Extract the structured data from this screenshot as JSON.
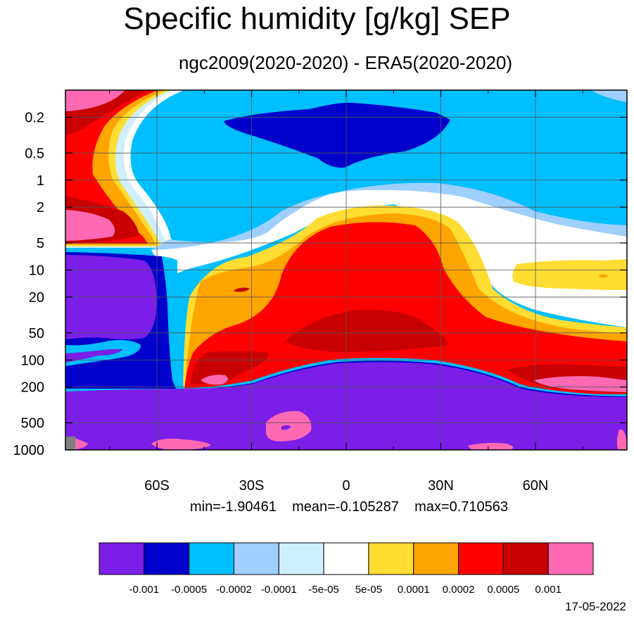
{
  "chart_data": {
    "type": "contour",
    "title": "Specific humidity [g/kg] SEP",
    "subtitle": "ngc2009(2020-2020) - ERA5(2020-2020)",
    "x_axis": {
      "ticks": [
        {
          "value": -60,
          "label": "60S"
        },
        {
          "value": -30,
          "label": "30S"
        },
        {
          "value": 0,
          "label": "0"
        },
        {
          "value": 30,
          "label": "30N"
        },
        {
          "value": 60,
          "label": "60N"
        }
      ],
      "range": [
        -89,
        89
      ]
    },
    "y_axis": {
      "scale": "log",
      "reversed": true,
      "range": [
        1000,
        0.1
      ],
      "ticks": [
        {
          "value": 0.2,
          "label": "0.2"
        },
        {
          "value": 0.5,
          "label": "0.5"
        },
        {
          "value": 1,
          "label": "1"
        },
        {
          "value": 2,
          "label": "2"
        },
        {
          "value": 5,
          "label": "5"
        },
        {
          "value": 10,
          "label": "10"
        },
        {
          "value": 20,
          "label": "20"
        },
        {
          "value": 50,
          "label": "50"
        },
        {
          "value": 100,
          "label": "100"
        },
        {
          "value": 200,
          "label": "200"
        },
        {
          "value": 500,
          "label": "500"
        },
        {
          "value": 1000,
          "label": "1000"
        }
      ]
    },
    "grid": true,
    "stats": {
      "min": "-1.90461",
      "mean": "-0.105287",
      "max": "0.710563"
    },
    "colorbar": {
      "colors": [
        "#7b1fe8",
        "#0000cc",
        "#00bfff",
        "#9fcfff",
        "#cfefff",
        "#ffffff",
        "#ffdd33",
        "#ffa500",
        "#ff0000",
        "#c80000",
        "#ff69b4"
      ],
      "levels": [
        "-0.001",
        "-0.0005",
        "-0.0002",
        "-0.0001",
        "-5e-05",
        "5e-05",
        "0.0001",
        "0.0002",
        "0.0005",
        "0.001"
      ]
    }
  },
  "labels": {
    "stats_min": "min=-1.90461",
    "stats_mean": "mean=-0.105287",
    "stats_max": "max=0.710563",
    "date": "17-05-2022"
  }
}
